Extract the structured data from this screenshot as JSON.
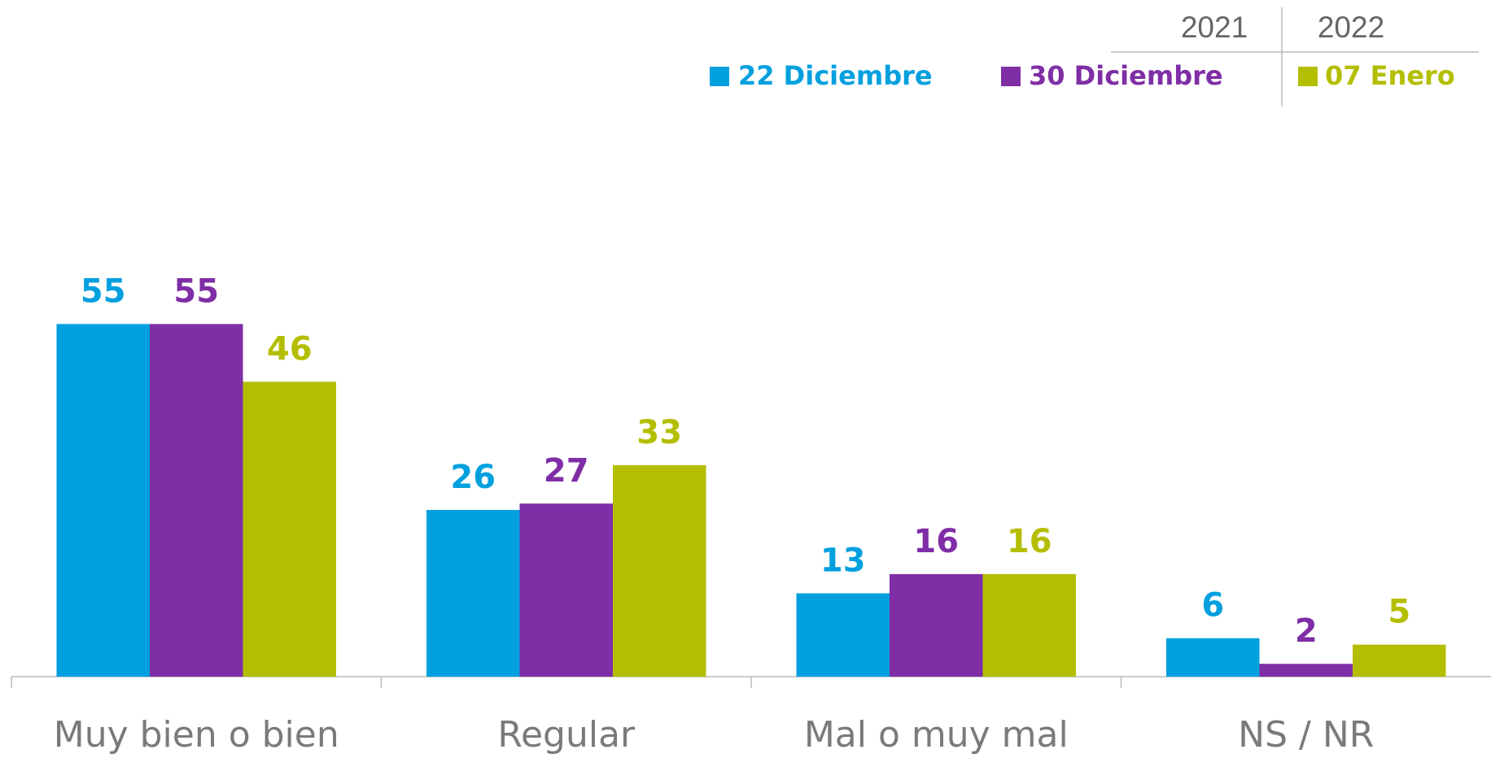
{
  "chart_data": {
    "type": "bar",
    "legend_years": [
      "2021",
      "2022"
    ],
    "categories": [
      "Muy bien o bien",
      "Regular",
      "Mal o muy mal",
      "NS / NR"
    ],
    "series": [
      {
        "name": "22 Diciembre",
        "color": "#00a0df",
        "values": [
          55,
          26,
          13,
          6
        ]
      },
      {
        "name": "30 Diciembre",
        "color": "#7f2ea6",
        "values": [
          55,
          27,
          16,
          2
        ]
      },
      {
        "name": "07 Enero",
        "color": "#b4be00",
        "values": [
          46,
          33,
          16,
          5
        ]
      }
    ],
    "ylim": [
      0,
      60
    ]
  }
}
